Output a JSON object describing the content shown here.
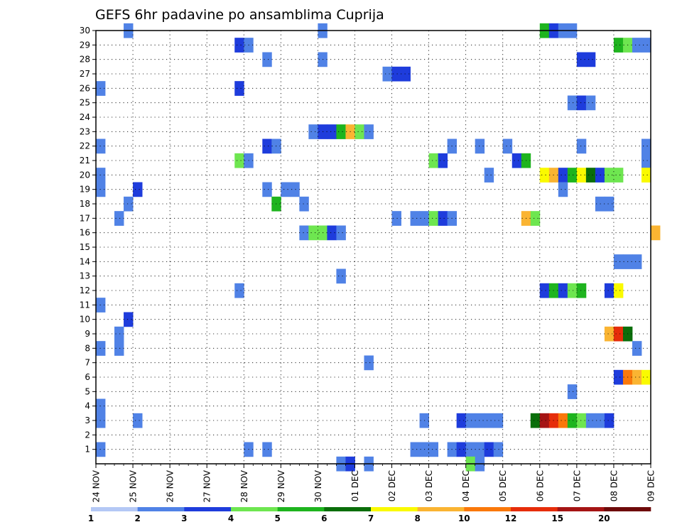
{
  "chart_data": {
    "type": "heatmap",
    "title": "GEFS 6hr padavine po ansamblima Cuprija",
    "xlabel": "",
    "ylabel": "",
    "x_start": "2023-11-24",
    "x_end": "2023-12-09",
    "x_tick_labels": [
      "24 NOV",
      "25 NOV",
      "26 NOV",
      "27 NOV",
      "28 NOV",
      "29 NOV",
      "30 NOV",
      "01 DEC",
      "02 DEC",
      "03 DEC",
      "04 DEC",
      "05 DEC",
      "06 DEC",
      "07 DEC",
      "08 DEC",
      "09 DEC"
    ],
    "y_tick_labels": [
      "1",
      "2",
      "3",
      "4",
      "5",
      "6",
      "7",
      "8",
      "9",
      "10",
      "11",
      "12",
      "13",
      "14",
      "15",
      "16",
      "17",
      "18",
      "19",
      "20",
      "21",
      "22",
      "23",
      "24",
      "25",
      "26",
      "27",
      "28",
      "29",
      "30"
    ],
    "ylim": [
      0,
      30
    ],
    "grid": true,
    "legend_placement": "bottom",
    "legend": {
      "labels": [
        "1",
        "2",
        "3",
        "4",
        "5",
        "6",
        "7",
        "8",
        "10",
        "12",
        "15",
        "20"
      ],
      "colors": [
        "#b4c8f5",
        "#5082e6",
        "#1e3cdc",
        "#6ee650",
        "#1eb41e",
        "#0a6e0a",
        "#fafa00",
        "#fab432",
        "#fa780a",
        "#e62d0a",
        "#a51414",
        "#6e0a0a"
      ]
    },
    "cells": [
      [
        30,
        "2023-11-24 18:00",
        1
      ],
      [
        30,
        "2023-11-30 00:00",
        1
      ],
      [
        30,
        "2023-12-06 00:00",
        4
      ],
      [
        30,
        "2023-12-06 06:00",
        2
      ],
      [
        30,
        "2023-12-06 12:00",
        1
      ],
      [
        30,
        "2023-12-06 18:00",
        1
      ],
      [
        29,
        "2023-11-27 18:00",
        2
      ],
      [
        29,
        "2023-11-28 00:00",
        1
      ],
      [
        29,
        "2023-12-08 00:00",
        4
      ],
      [
        29,
        "2023-12-08 06:00",
        3
      ],
      [
        29,
        "2023-12-08 12:00",
        1
      ],
      [
        29,
        "2023-12-08 18:00",
        1
      ],
      [
        28,
        "2023-11-28 12:00",
        1
      ],
      [
        28,
        "2023-11-30 00:00",
        1
      ],
      [
        28,
        "2023-12-07 00:00",
        2
      ],
      [
        28,
        "2023-12-07 06:00",
        2
      ],
      [
        27,
        "2023-12-01 18:00",
        1
      ],
      [
        27,
        "2023-12-02 00:00",
        2
      ],
      [
        27,
        "2023-12-02 06:00",
        2
      ],
      [
        26,
        "2023-11-24 00:00",
        1
      ],
      [
        26,
        "2023-11-27 18:00",
        2
      ],
      [
        25,
        "2023-12-06 18:00",
        1
      ],
      [
        25,
        "2023-12-07 00:00",
        2
      ],
      [
        25,
        "2023-12-07 06:00",
        1
      ],
      [
        23,
        "2023-11-29 18:00",
        1
      ],
      [
        23,
        "2023-11-30 00:00",
        2
      ],
      [
        23,
        "2023-11-30 06:00",
        2
      ],
      [
        23,
        "2023-11-30 12:00",
        4
      ],
      [
        23,
        "2023-11-30 18:00",
        7
      ],
      [
        23,
        "2023-12-01 00:00",
        3
      ],
      [
        23,
        "2023-12-01 06:00",
        1
      ],
      [
        22,
        "2023-11-24 00:00",
        1
      ],
      [
        22,
        "2023-11-28 12:00",
        2
      ],
      [
        22,
        "2023-11-28 18:00",
        1
      ],
      [
        22,
        "2023-12-03 12:00",
        1
      ],
      [
        22,
        "2023-12-04 06:00",
        1
      ],
      [
        22,
        "2023-12-05 00:00",
        1
      ],
      [
        22,
        "2023-12-07 00:00",
        1
      ],
      [
        22,
        "2023-12-08 18:00",
        1
      ],
      [
        21,
        "2023-11-27 18:00",
        3
      ],
      [
        21,
        "2023-11-28 00:00",
        1
      ],
      [
        21,
        "2023-12-03 00:00",
        3
      ],
      [
        21,
        "2023-12-03 06:00",
        2
      ],
      [
        21,
        "2023-12-05 06:00",
        2
      ],
      [
        21,
        "2023-12-05 12:00",
        4
      ],
      [
        21,
        "2023-12-08 18:00",
        1
      ],
      [
        20,
        "2023-11-24 00:00",
        1
      ],
      [
        20,
        "2023-12-04 12:00",
        1
      ],
      [
        20,
        "2023-12-06 00:00",
        6
      ],
      [
        20,
        "2023-12-06 06:00",
        7
      ],
      [
        20,
        "2023-12-06 12:00",
        2
      ],
      [
        20,
        "2023-12-06 18:00",
        4
      ],
      [
        20,
        "2023-12-07 00:00",
        6
      ],
      [
        20,
        "2023-12-07 06:00",
        5
      ],
      [
        20,
        "2023-12-07 12:00",
        2
      ],
      [
        20,
        "2023-12-07 18:00",
        3
      ],
      [
        20,
        "2023-12-08 00:00",
        3
      ],
      [
        20,
        "2023-12-08 18:00",
        6
      ],
      [
        19,
        "2023-11-24 00:00",
        1
      ],
      [
        19,
        "2023-11-25 00:00",
        2
      ],
      [
        19,
        "2023-11-28 12:00",
        1
      ],
      [
        19,
        "2023-11-29 00:00",
        1
      ],
      [
        19,
        "2023-11-29 06:00",
        1
      ],
      [
        19,
        "2023-12-06 12:00",
        1
      ],
      [
        18,
        "2023-11-24 18:00",
        1
      ],
      [
        18,
        "2023-11-28 18:00",
        4
      ],
      [
        18,
        "2023-11-29 12:00",
        1
      ],
      [
        18,
        "2023-12-07 12:00",
        1
      ],
      [
        18,
        "2023-12-07 18:00",
        1
      ],
      [
        17,
        "2023-11-24 12:00",
        1
      ],
      [
        17,
        "2023-12-02 00:00",
        1
      ],
      [
        17,
        "2023-12-02 12:00",
        1
      ],
      [
        17,
        "2023-12-02 18:00",
        1
      ],
      [
        17,
        "2023-12-03 00:00",
        3
      ],
      [
        17,
        "2023-12-03 06:00",
        2
      ],
      [
        17,
        "2023-12-03 12:00",
        1
      ],
      [
        17,
        "2023-12-05 12:00",
        7
      ],
      [
        17,
        "2023-12-05 18:00",
        3
      ],
      [
        16,
        "2023-11-29 12:00",
        1
      ],
      [
        16,
        "2023-11-29 18:00",
        3
      ],
      [
        16,
        "2023-11-30 00:00",
        3
      ],
      [
        16,
        "2023-11-30 06:00",
        2
      ],
      [
        16,
        "2023-11-30 12:00",
        1
      ],
      [
        16,
        "2023-12-09 00:00",
        7
      ],
      [
        14,
        "2023-12-08 00:00",
        1
      ],
      [
        14,
        "2023-12-08 06:00",
        1
      ],
      [
        14,
        "2023-12-08 12:00",
        1
      ],
      [
        13,
        "2023-11-30 12:00",
        1
      ],
      [
        12,
        "2023-11-27 18:00",
        1
      ],
      [
        12,
        "2023-12-06 00:00",
        2
      ],
      [
        12,
        "2023-12-06 06:00",
        4
      ],
      [
        12,
        "2023-12-06 12:00",
        2
      ],
      [
        12,
        "2023-12-06 18:00",
        3
      ],
      [
        12,
        "2023-12-07 00:00",
        4
      ],
      [
        12,
        "2023-12-07 18:00",
        2
      ],
      [
        12,
        "2023-12-08 00:00",
        6
      ],
      [
        11,
        "2023-11-24 00:00",
        1
      ],
      [
        10,
        "2023-11-24 18:00",
        2
      ],
      [
        9,
        "2023-11-24 12:00",
        1
      ],
      [
        9,
        "2023-12-07 18:00",
        7
      ],
      [
        9,
        "2023-12-08 00:00",
        9
      ],
      [
        9,
        "2023-12-08 06:00",
        5
      ],
      [
        8,
        "2023-11-24 00:00",
        1
      ],
      [
        8,
        "2023-11-24 12:00",
        1
      ],
      [
        8,
        "2023-12-08 12:00",
        1
      ],
      [
        7,
        "2023-12-01 06:00",
        1
      ],
      [
        6,
        "2023-12-08 00:00",
        2
      ],
      [
        6,
        "2023-12-08 06:00",
        8
      ],
      [
        6,
        "2023-12-08 12:00",
        7
      ],
      [
        6,
        "2023-12-08 18:00",
        6
      ],
      [
        5,
        "2023-12-06 18:00",
        1
      ],
      [
        4,
        "2023-11-24 00:00",
        1
      ],
      [
        3,
        "2023-11-24 00:00",
        1
      ],
      [
        3,
        "2023-11-25 00:00",
        1
      ],
      [
        3,
        "2023-12-02 18:00",
        1
      ],
      [
        3,
        "2023-12-03 18:00",
        2
      ],
      [
        3,
        "2023-12-04 00:00",
        1
      ],
      [
        3,
        "2023-12-04 06:00",
        1
      ],
      [
        3,
        "2023-12-04 12:00",
        1
      ],
      [
        3,
        "2023-12-04 18:00",
        1
      ],
      [
        3,
        "2023-12-05 18:00",
        5
      ],
      [
        3,
        "2023-12-06 00:00",
        10
      ],
      [
        3,
        "2023-12-06 06:00",
        9
      ],
      [
        3,
        "2023-12-06 12:00",
        8
      ],
      [
        3,
        "2023-12-06 18:00",
        4
      ],
      [
        3,
        "2023-12-07 00:00",
        3
      ],
      [
        3,
        "2023-12-07 06:00",
        1
      ],
      [
        3,
        "2023-12-07 12:00",
        1
      ],
      [
        3,
        "2023-12-07 18:00",
        2
      ],
      [
        1,
        "2023-11-24 00:00",
        1
      ],
      [
        1,
        "2023-11-28 00:00",
        1
      ],
      [
        1,
        "2023-11-28 12:00",
        1
      ],
      [
        1,
        "2023-12-02 12:00",
        1
      ],
      [
        1,
        "2023-12-02 18:00",
        1
      ],
      [
        1,
        "2023-12-03 00:00",
        1
      ],
      [
        1,
        "2023-12-03 12:00",
        1
      ],
      [
        1,
        "2023-12-03 18:00",
        2
      ],
      [
        1,
        "2023-12-04 00:00",
        1
      ],
      [
        1,
        "2023-12-04 06:00",
        1
      ],
      [
        1,
        "2023-12-04 12:00",
        2
      ],
      [
        1,
        "2023-12-04 18:00",
        1
      ],
      [
        0,
        "2023-11-30 12:00",
        1
      ],
      [
        0,
        "2023-11-30 18:00",
        2
      ],
      [
        0,
        "2023-12-01 06:00",
        1
      ],
      [
        0,
        "2023-12-04 00:00",
        3
      ],
      [
        0,
        "2023-12-04 06:00",
        1
      ]
    ]
  }
}
